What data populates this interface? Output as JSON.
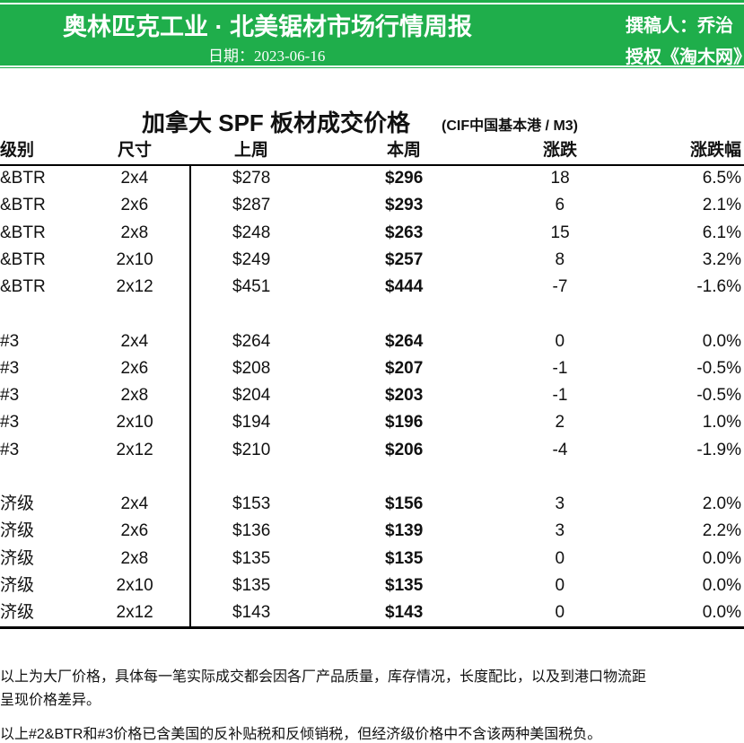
{
  "header": {
    "title": "奥林匹克工业 · 北美锯材市场行情周报",
    "date": "日期：2023-06-16",
    "author": "撰稿人：乔治",
    "rights": "授权《淘木网》"
  },
  "table": {
    "title": "加拿大 SPF 板材成交价格",
    "subtitle": "(CIF中国基本港 / M3)",
    "columns": [
      "级别",
      "尺寸",
      "上周",
      "本周",
      "涨跌",
      "涨跌幅"
    ],
    "groups": [
      [
        [
          "&BTR",
          "2x4",
          "$278",
          "$296",
          "18",
          "6.5%"
        ],
        [
          "&BTR",
          "2x6",
          "$287",
          "$293",
          "6",
          "2.1%"
        ],
        [
          "&BTR",
          "2x8",
          "$248",
          "$263",
          "15",
          "6.1%"
        ],
        [
          "&BTR",
          "2x10",
          "$249",
          "$257",
          "8",
          "3.2%"
        ],
        [
          "&BTR",
          "2x12",
          "$451",
          "$444",
          "-7",
          "-1.6%"
        ]
      ],
      [
        [
          "#3",
          "2x4",
          "$264",
          "$264",
          "0",
          "0.0%"
        ],
        [
          "#3",
          "2x6",
          "$208",
          "$207",
          "-1",
          "-0.5%"
        ],
        [
          "#3",
          "2x8",
          "$204",
          "$203",
          "-1",
          "-0.5%"
        ],
        [
          "#3",
          "2x10",
          "$194",
          "$196",
          "2",
          "1.0%"
        ],
        [
          "#3",
          "2x12",
          "$210",
          "$206",
          "-4",
          "-1.9%"
        ]
      ],
      [
        [
          "济级",
          "2x4",
          "$153",
          "$156",
          "3",
          "2.0%"
        ],
        [
          "济级",
          "2x6",
          "$136",
          "$139",
          "3",
          "2.2%"
        ],
        [
          "济级",
          "2x8",
          "$135",
          "$135",
          "0",
          "0.0%"
        ],
        [
          "济级",
          "2x10",
          "$135",
          "$135",
          "0",
          "0.0%"
        ],
        [
          "济级",
          "2x12",
          "$143",
          "$143",
          "0",
          "0.0%"
        ]
      ]
    ]
  },
  "notes": [
    "以上为大厂价格，具体每一笔实际成交都会因各厂产品质量，库存情况，长度配比，以及到港口物流距",
    "呈现价格差异。",
    "以上#2&BTR和#3价格已含美国的反补贴税和反倾销税，但经济级价格中不含该两种美国税负。"
  ]
}
